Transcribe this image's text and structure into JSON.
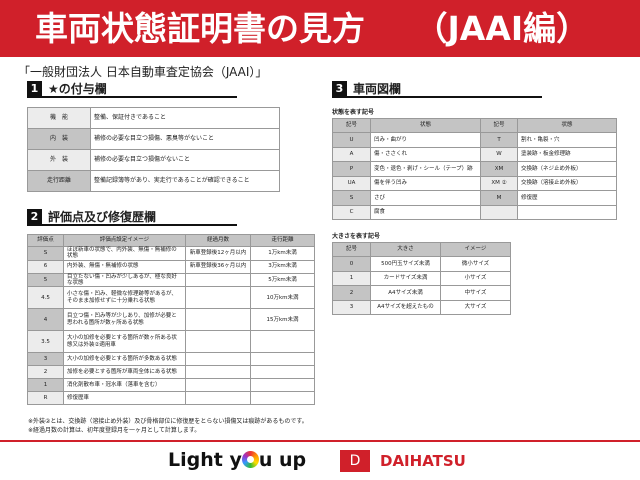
{
  "title": "車両状態証明書の見方　　（JAAI編）",
  "subtitle": "「一般財団法人 日本自動車査定協会（JAAI）」",
  "section1": {
    "num": "1",
    "title": "★の付与欄",
    "rows": [
      {
        "k": "機　能",
        "v": "整備、保証付きであること"
      },
      {
        "k": "内　装",
        "v": "補修の必要な目立つ損傷、悪臭等がないこと"
      },
      {
        "k": "外　装",
        "v": "補修の必要な目立つ損傷がないこと"
      },
      {
        "k": "走行距離",
        "v": "整備記録簿等があり、実走行であることが確認できること"
      }
    ]
  },
  "section2": {
    "num": "2",
    "title": "評価点及び修復歴欄",
    "headers": [
      "評価点",
      "評価点設定イメージ",
      "経過月数",
      "走行距離"
    ],
    "rows": [
      [
        "S",
        "ほぼ新車の状態で、内外装、無傷・無補修の状態",
        "新車登録後12ヶ月以内",
        "1万km未満"
      ],
      [
        "6",
        "内外装、無傷・無補修の状態",
        "新車登録後36ヶ月以内",
        "3万km未満"
      ],
      [
        "5",
        "目立たない傷・凹みが少しあるが、極な良好な状態",
        "",
        "5万km未満"
      ],
      [
        "4.5",
        "小さな傷・凹み、軽微な修理跡等があるが、そのまま加修せずに十分乗れる状態",
        "",
        "10万km未満"
      ],
      [
        "4",
        "目立つ傷・凹み等が少しあり、加修が必要と思われる箇所が数ヶ所ある状態",
        "",
        "15万km未満"
      ],
      [
        "3.5",
        "大小の加修を必要とする箇所が数ヶ所ある状態又は外装②適用車",
        "",
        ""
      ],
      [
        "3",
        "大小の加修を必要とする箇所が多数ある状態",
        "",
        ""
      ],
      [
        "2",
        "加修を必要とする箇所が車両全体にある状態",
        "",
        ""
      ],
      [
        "1",
        "消化剤散布車・冠水車（落車を含む）",
        "",
        ""
      ],
      [
        "R",
        "修復歴車",
        "",
        ""
      ]
    ]
  },
  "notes": [
    "※外装②とは、交換跡（溶接止め外装）及び骨格部位に修復歴をとらない損傷又は痕跡があるものです。",
    "※経過月数の計算は、初年度登録月を一ヶ月として計算します。"
  ],
  "section3": {
    "num": "3",
    "title": "車両図欄",
    "state_caption": "状態を表す記号",
    "state_headers": [
      "記号",
      "状態",
      "記号",
      "状態"
    ],
    "state_rows": [
      [
        "U",
        "凹み・曲がり",
        "T",
        "割れ・亀裂・穴"
      ],
      [
        "A",
        "傷・ささくれ",
        "W",
        "塗装跡・板金修理跡"
      ],
      [
        "P",
        "変色・退色・剥げ・シール（テープ）跡",
        "XM",
        "交換跡（ネジ止め外板）"
      ],
      [
        "UA",
        "傷を伴う凹み",
        "XM ②",
        "交換跡（溶接止め外板）"
      ],
      [
        "S",
        "さび",
        "M",
        "修復歴"
      ],
      [
        "C",
        "腐食",
        "",
        ""
      ]
    ],
    "size_caption": "大きさを表す記号",
    "size_headers": [
      "記号",
      "大きさ",
      "イメージ"
    ],
    "size_rows": [
      [
        "0",
        "500円玉サイズ未満",
        "微小サイズ"
      ],
      [
        "1",
        "カードサイズ未満",
        "小サイズ"
      ],
      [
        "2",
        "A4サイズ未満",
        "中サイズ"
      ],
      [
        "3",
        "A4サイズを超えたもの",
        "大サイズ"
      ]
    ]
  },
  "footer": {
    "slogan_a": "Light y",
    "slogan_b": "u up",
    "brand": "DAIHATSU"
  },
  "colors": {
    "brand_red": "#d0202a",
    "header_gray": "#c4c4c4"
  }
}
